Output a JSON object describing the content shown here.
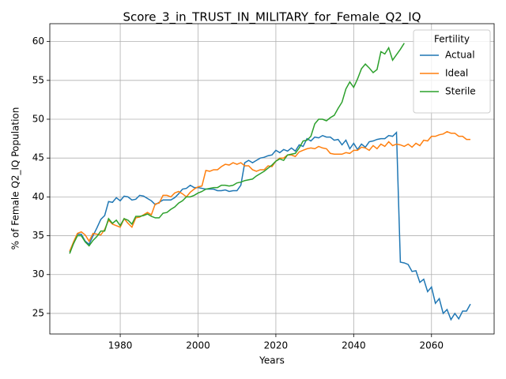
{
  "chart_data": {
    "type": "line",
    "title": "Score_3_in_TRUST_IN_MILITARY_for_Female_Q2_IQ",
    "x_label": "Years",
    "y_label": "% of Female Q2_IQ Population",
    "legend_title": "Fertility",
    "legend": "upper right",
    "grid": true,
    "xlim": [
      1961.9,
      2076.1
    ],
    "ylim": [
      22.35,
      62.3
    ],
    "xticks": [
      1980,
      2000,
      2020,
      2040,
      2060
    ],
    "yticks": [
      25,
      30,
      35,
      40,
      45,
      50,
      55,
      60
    ],
    "x": [
      1967,
      1968,
      1969,
      1970,
      1971,
      1972,
      1973,
      1974,
      1975,
      1976,
      1977,
      1978,
      1979,
      1980,
      1981,
      1982,
      1983,
      1984,
      1985,
      1986,
      1987,
      1988,
      1989,
      1990,
      1991,
      1992,
      1993,
      1994,
      1995,
      1996,
      1997,
      1998,
      1999,
      2000,
      2001,
      2002,
      2003,
      2004,
      2005,
      2006,
      2007,
      2008,
      2009,
      2010,
      2011,
      2012,
      2013,
      2014,
      2015,
      2016,
      2017,
      2018,
      2019,
      2020,
      2021,
      2022,
      2023,
      2024,
      2025,
      2026,
      2027,
      2028,
      2029,
      2030,
      2031,
      2032,
      2033,
      2034,
      2035,
      2036,
      2037,
      2038,
      2039,
      2040,
      2041,
      2042,
      2043,
      2044,
      2045,
      2046,
      2047,
      2048,
      2049,
      2050,
      2051,
      2052,
      2053,
      2054,
      2055,
      2056,
      2057,
      2058,
      2059,
      2060,
      2061,
      2062,
      2063,
      2064,
      2065,
      2066,
      2067,
      2068,
      2069,
      2070
    ],
    "series": [
      {
        "name": "Actual",
        "color": "#1f77b4",
        "values": [
          32.9,
          34.0,
          35.2,
          35.2,
          34.3,
          33.9,
          35.0,
          36.0,
          37.1,
          37.6,
          39.4,
          39.3,
          39.9,
          39.5,
          40.1,
          40.0,
          39.6,
          39.7,
          40.2,
          40.1,
          39.8,
          39.5,
          39.0,
          39.3,
          39.6,
          39.6,
          39.6,
          39.9,
          40.4,
          41.0,
          41.1,
          41.5,
          41.2,
          41.2,
          41.1,
          41.0,
          41.0,
          41.0,
          40.8,
          40.8,
          40.9,
          40.7,
          40.8,
          40.8,
          41.5,
          44.4,
          44.7,
          44.4,
          44.7,
          45.0,
          45.1,
          45.3,
          45.4,
          46.0,
          45.7,
          46.1,
          45.9,
          46.3,
          45.9,
          46.7,
          46.5,
          47.5,
          47.2,
          47.7,
          47.6,
          47.9,
          47.7,
          47.7,
          47.3,
          47.4,
          46.7,
          47.3,
          46.2,
          46.9,
          46.1,
          46.8,
          46.4,
          47.1,
          47.2,
          47.4,
          47.5,
          47.5,
          47.9,
          47.8,
          48.3,
          31.6,
          31.5,
          31.3,
          30.4,
          30.5,
          29.0,
          29.4,
          27.8,
          28.4,
          26.3,
          26.9,
          25.0,
          25.5,
          24.2,
          25.0,
          24.3,
          25.3,
          25.3,
          26.2
        ]
      },
      {
        "name": "Ideal",
        "color": "#ff7f0e",
        "values": [
          33.0,
          34.2,
          35.3,
          35.5,
          35.1,
          34.3,
          35.3,
          35.2,
          35.1,
          35.8,
          37.0,
          36.5,
          36.3,
          36.1,
          37.2,
          36.6,
          36.1,
          37.3,
          37.4,
          37.7,
          38.0,
          37.7,
          39.1,
          39.2,
          40.2,
          40.2,
          40.0,
          40.5,
          40.7,
          40.4,
          40.0,
          40.6,
          41.0,
          41.3,
          41.4,
          43.4,
          43.3,
          43.5,
          43.5,
          43.9,
          44.2,
          44.1,
          44.4,
          44.2,
          44.4,
          44.0,
          44.0,
          43.5,
          43.3,
          43.5,
          43.5,
          44.0,
          43.9,
          44.6,
          45.0,
          45.0,
          45.4,
          45.4,
          45.2,
          45.8,
          46.0,
          46.2,
          46.3,
          46.2,
          46.5,
          46.3,
          46.2,
          45.6,
          45.5,
          45.5,
          45.5,
          45.7,
          45.6,
          46.0,
          46.0,
          46.4,
          46.3,
          46.0,
          46.6,
          46.2,
          46.8,
          46.5,
          47.1,
          46.6,
          46.8,
          46.7,
          46.5,
          46.8,
          46.4,
          46.9,
          46.6,
          47.3,
          47.2,
          47.8,
          47.8,
          48.0,
          48.1,
          48.4,
          48.2,
          48.2,
          47.8,
          47.8,
          47.4,
          47.4
        ]
      },
      {
        "name": "Sterile",
        "color": "#2ca02c",
        "values": [
          32.7,
          34.0,
          35.0,
          35.0,
          34.2,
          33.7,
          34.4,
          34.9,
          35.6,
          35.6,
          37.2,
          36.6,
          37.0,
          36.3,
          37.2,
          37.0,
          36.5,
          37.5,
          37.5,
          37.6,
          37.8,
          37.5,
          37.3,
          37.3,
          37.9,
          38.0,
          38.4,
          38.7,
          39.2,
          39.5,
          40.0,
          40.0,
          40.2,
          40.5,
          40.7,
          41.0,
          41.1,
          41.2,
          41.2,
          41.5,
          41.5,
          41.4,
          41.5,
          41.8,
          41.9,
          42.1,
          42.2,
          42.3,
          42.7,
          43.0,
          43.3,
          43.7,
          44.1,
          44.6,
          44.9,
          44.7,
          45.4,
          45.5,
          45.6,
          46.3,
          47.2,
          47.3,
          47.8,
          49.4,
          50.0,
          50.0,
          49.8,
          50.2,
          50.5,
          51.4,
          52.2,
          53.9,
          54.8,
          54.1,
          55.2,
          56.5,
          57.1,
          56.6,
          56.0,
          56.4,
          58.7,
          58.4,
          59.2,
          57.6,
          58.3,
          59.0,
          59.8,
          null,
          null,
          null,
          null,
          null,
          null,
          null,
          null,
          null,
          null,
          null,
          null,
          null,
          null,
          null,
          null,
          null
        ]
      }
    ]
  }
}
